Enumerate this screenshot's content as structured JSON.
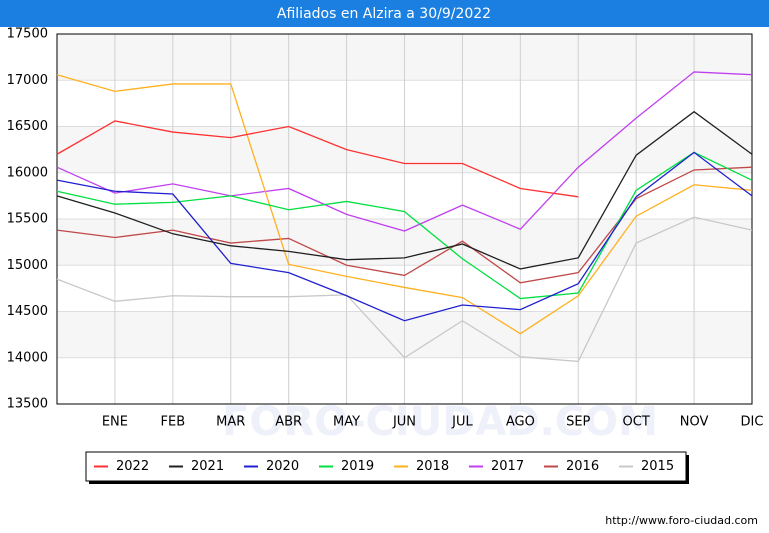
{
  "chart_data": {
    "type": "line",
    "title": "Afiliados en Alzira a 30/9/2022",
    "footer": "http://www.foro-ciudad.com",
    "watermark": "FORO-CIUDAD.COM",
    "categories": [
      null,
      "ENE",
      "FEB",
      "MAR",
      "ABR",
      "MAY",
      "JUN",
      "JUL",
      "AGO",
      "SEP",
      "OCT",
      "NOV",
      "DIC"
    ],
    "ylim": [
      13500,
      17500
    ],
    "yticks": [
      13500,
      14000,
      14500,
      15000,
      15500,
      16000,
      16500,
      17000,
      17500
    ],
    "grid": true,
    "legend": "bottom",
    "series": [
      {
        "name": "2022",
        "color": "#ff3030",
        "values": [
          16200,
          16560,
          16440,
          16380,
          16500,
          16250,
          16100,
          16100,
          15830,
          15740,
          null,
          null,
          null
        ]
      },
      {
        "name": "2021",
        "color": "#202020",
        "values": [
          15750,
          15565,
          15340,
          15210,
          15150,
          15060,
          15080,
          15230,
          14960,
          15080,
          16190,
          16660,
          16200
        ]
      },
      {
        "name": "2020",
        "color": "#2020d0",
        "values": [
          15920,
          15800,
          15770,
          15020,
          14920,
          14670,
          14400,
          14570,
          14520,
          14800,
          15740,
          16220,
          15750
        ]
      },
      {
        "name": "2019",
        "color": "#00e040",
        "values": [
          15800,
          15660,
          15680,
          15750,
          15600,
          15690,
          15580,
          15070,
          14640,
          14700,
          15810,
          16220,
          15920
        ]
      },
      {
        "name": "2018",
        "color": "#ffb020",
        "values": [
          17060,
          16880,
          16960,
          16960,
          15010,
          14880,
          14760,
          14650,
          14260,
          14670,
          15530,
          15870,
          15810
        ]
      },
      {
        "name": "2017",
        "color": "#c040f0",
        "values": [
          16060,
          15780,
          15880,
          15750,
          15830,
          15550,
          15370,
          15650,
          15390,
          16060,
          16590,
          17090,
          17060
        ]
      },
      {
        "name": "2016",
        "color": "#c04848",
        "values": [
          15380,
          15300,
          15380,
          15240,
          15290,
          15000,
          14890,
          15260,
          14810,
          14920,
          15720,
          16030,
          16060
        ]
      },
      {
        "name": "2015",
        "color": "#c8c8c8",
        "values": [
          14850,
          14610,
          14670,
          14660,
          14660,
          14680,
          14000,
          14400,
          14010,
          13960,
          15240,
          15520,
          15380
        ]
      }
    ]
  }
}
